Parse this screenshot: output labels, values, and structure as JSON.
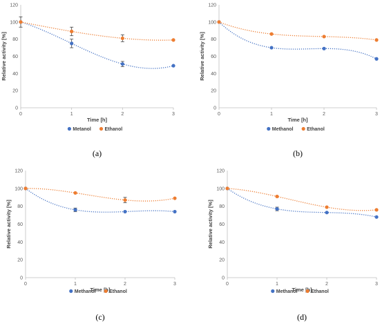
{
  "chart_data": [
    {
      "panel": "(a)",
      "type": "scatter",
      "xlabel": "Time [h]",
      "ylabel": "Relative activity [%]",
      "xlim": [
        0,
        3
      ],
      "ylim": [
        0,
        120
      ],
      "x_ticks": [
        0,
        1,
        2,
        3
      ],
      "y_ticks": [
        0,
        20,
        40,
        60,
        80,
        100,
        120
      ],
      "grid": false,
      "legend": "bottom",
      "series": [
        {
          "name": "Metanol",
          "color": "#4472C4",
          "x": [
            0,
            1,
            2,
            3
          ],
          "y": [
            100,
            75,
            51,
            49
          ],
          "error": [
            6,
            5,
            3,
            0
          ]
        },
        {
          "name": "Ethanol",
          "color": "#ED7D31",
          "x": [
            0,
            1,
            2,
            3
          ],
          "y": [
            100,
            89,
            81,
            79
          ],
          "error": [
            0,
            5,
            4,
            0
          ]
        }
      ]
    },
    {
      "panel": "(b)",
      "type": "scatter",
      "xlabel": "Time [h]",
      "ylabel": "Relative activity [%]",
      "xlim": [
        0,
        3
      ],
      "ylim": [
        0,
        120
      ],
      "x_ticks": [
        0,
        1,
        2,
        3
      ],
      "y_ticks": [
        0,
        20,
        40,
        60,
        80,
        100,
        120
      ],
      "grid": false,
      "legend": "bottom",
      "series": [
        {
          "name": "Methanol",
          "color": "#4472C4",
          "x": [
            0,
            1,
            2,
            3
          ],
          "y": [
            100,
            70,
            69,
            57
          ],
          "error": [
            0,
            0,
            0,
            0
          ]
        },
        {
          "name": "Ethanol",
          "color": "#ED7D31",
          "x": [
            0,
            1,
            2,
            3
          ],
          "y": [
            100,
            86,
            83,
            79
          ],
          "error": [
            0,
            0,
            0,
            0
          ]
        }
      ]
    },
    {
      "panel": "(c)",
      "type": "scatter",
      "xlabel": "Time [h]",
      "ylabel": "Relative activity [%]",
      "xlim": [
        0,
        3
      ],
      "ylim": [
        0,
        120
      ],
      "x_ticks": [
        0,
        1,
        2,
        3
      ],
      "y_ticks": [
        0,
        20,
        40,
        60,
        80,
        100,
        120
      ],
      "grid": false,
      "legend": "bottom",
      "series": [
        {
          "name": "Methanol",
          "color": "#4472C4",
          "x": [
            0,
            1,
            2,
            3
          ],
          "y": [
            100,
            76,
            74,
            74
          ],
          "error": [
            0,
            2,
            0,
            0
          ]
        },
        {
          "name": "Ethanol",
          "color": "#ED7D31",
          "x": [
            0,
            1,
            2,
            3
          ],
          "y": [
            100,
            95,
            87,
            89
          ],
          "error": [
            0,
            0,
            3,
            0
          ]
        }
      ]
    },
    {
      "panel": "(d)",
      "type": "scatter",
      "xlabel": "Time [h]",
      "ylabel": "Relative activity [%]",
      "xlim": [
        0,
        3
      ],
      "ylim": [
        0,
        120
      ],
      "x_ticks": [
        0,
        1,
        2,
        3
      ],
      "y_ticks": [
        0,
        20,
        40,
        60,
        80,
        100,
        120
      ],
      "grid": false,
      "legend": "bottom",
      "series": [
        {
          "name": "Methanol",
          "color": "#4472C4",
          "x": [
            0,
            1,
            2,
            3
          ],
          "y": [
            100,
            77,
            73,
            68
          ],
          "error": [
            0,
            2,
            0,
            0
          ]
        },
        {
          "name": "Ethanol",
          "color": "#ED7D31",
          "x": [
            0,
            1,
            2,
            3
          ],
          "y": [
            100,
            91,
            79,
            76
          ],
          "error": [
            0,
            0,
            0,
            0
          ]
        }
      ]
    }
  ]
}
